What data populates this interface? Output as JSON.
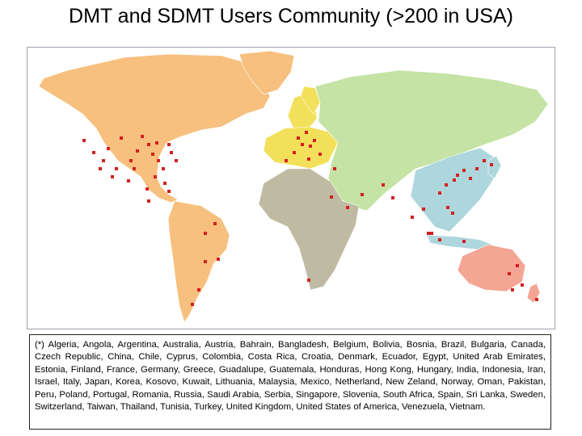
{
  "title": "DMT and SDMT Users Community (>200 in USA)",
  "map": {
    "colors": {
      "americas": "#f7c07e",
      "europe": "#f3e05a",
      "russia_asia": "#c4e3a4",
      "africa": "#bfbaa2",
      "east_asia": "#aed6dd",
      "oceania": "#f4a593",
      "greenland": "#f7c07e",
      "user_marker": "#d42020"
    }
  },
  "caption": "(*) Algeria, Angola, Argentina, Australia, Austria, Bahrain, Bangladesh, Belgium, Bolivia, Bosnia, Brazil, Bulgaria, Canada, Czech Republic, China, Chile, Cyprus, Colombia, Costa Rica, Croatia, Denmark, Ecuador, Egypt, United Arab Emirates, Estonia, Finland, France, Germany, Greece, Guadalupe, Guatemala, Honduras, Hong Kong, Hungary, India, Indonesia, Iran, Israel, Italy, Japan, Korea, Kosovo, Kuwait, Lithuania, Malaysia, Mexico, Netherland, New Zeland, Norway, Oman, Pakistan, Peru, Poland, Portugal, Romania, Russia, Saudi Arabia, Serbia, Singapore, Slovenia, South Africa, Spain, Sri Lanka, Sweden, Switzerland, Taiwan, Thailand, Tunisia, Turkey, United Kingdom, United States of America, Venezuela, Vietnam."
}
